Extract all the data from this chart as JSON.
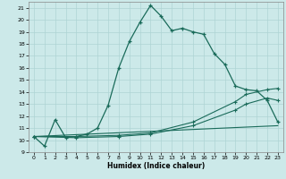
{
  "xlabel": "Humidex (Indice chaleur)",
  "xlim": [
    -0.5,
    23.5
  ],
  "ylim": [
    9,
    21.5
  ],
  "xticks": [
    0,
    1,
    2,
    3,
    4,
    5,
    6,
    7,
    8,
    9,
    10,
    11,
    12,
    13,
    14,
    15,
    16,
    17,
    18,
    19,
    20,
    21,
    22,
    23
  ],
  "yticks": [
    9,
    10,
    11,
    12,
    13,
    14,
    15,
    16,
    17,
    18,
    19,
    20,
    21
  ],
  "bg_color": "#cce9e9",
  "grid_color": "#aed4d4",
  "line_color": "#1a6b5a",
  "line1_x": [
    0,
    1,
    2,
    3,
    4,
    5,
    6,
    7,
    8,
    9,
    10,
    11,
    12,
    13,
    14,
    15,
    16,
    17,
    18,
    19,
    20,
    21,
    22,
    23
  ],
  "line1_y": [
    10.3,
    9.5,
    11.7,
    10.2,
    10.3,
    10.5,
    11.0,
    12.9,
    16.0,
    18.2,
    19.8,
    21.2,
    20.3,
    19.1,
    19.3,
    19.0,
    18.8,
    17.2,
    16.3,
    14.5,
    14.2,
    14.1,
    13.3,
    11.5
  ],
  "line2_x": [
    0,
    4,
    8,
    11,
    15,
    19,
    20,
    22,
    23
  ],
  "line2_y": [
    10.3,
    10.3,
    10.4,
    10.6,
    11.5,
    13.2,
    13.8,
    14.2,
    14.3
  ],
  "line3_x": [
    0,
    4,
    8,
    11,
    15,
    19,
    20,
    22,
    23
  ],
  "line3_y": [
    10.3,
    10.2,
    10.3,
    10.5,
    11.2,
    12.5,
    13.0,
    13.5,
    13.3
  ],
  "line4_x": [
    0,
    23
  ],
  "line4_y": [
    10.3,
    11.2
  ]
}
